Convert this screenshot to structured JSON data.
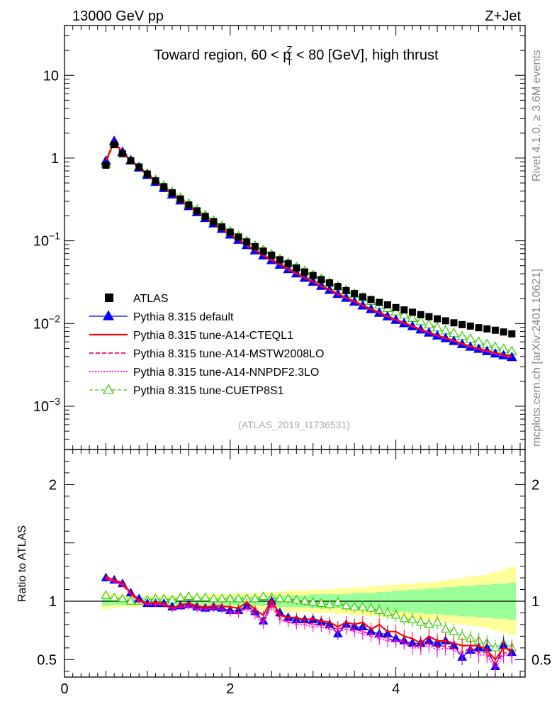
{
  "header": {
    "energy": "13000 GeV pp",
    "process": "Z+Jet"
  },
  "side_labels": {
    "rivet": "Rivet 4.1.0, ≥ 3.6M events",
    "mcplots": "mcplots.cern.ch [arXiv:2401.10621]"
  },
  "title": {
    "prefix": "Toward region, 60 < p",
    "sup": "Z",
    "sub": "T",
    "suffix": " < 80 [GeV], high thrust"
  },
  "analysis_tag": "(ATLAS_2019_I1736531)",
  "colors": {
    "ATLAS": "#000000",
    "default": "#0000ff",
    "CTEQL1": "#ff0000",
    "MSTW": "#ff0066",
    "NNPDF": "#ff00ff",
    "CUETP8S1": "#33cc00",
    "band_inner": "#99ff99",
    "band_outer": "#ffff99"
  },
  "chart_data": [
    {
      "type": "scatter",
      "panel": "main",
      "yscale": "log",
      "xlim": [
        0,
        5.56
      ],
      "ylim": [
        0.0003,
        40
      ],
      "y_ticks": [
        {
          "value": 10,
          "label": "10"
        },
        {
          "value": 1,
          "label": "1"
        },
        {
          "value": 0.1,
          "label": "10",
          "sup": "−1"
        },
        {
          "value": 0.01,
          "label": "10",
          "sup": "−2"
        },
        {
          "value": 0.001,
          "label": "10",
          "sup": "−3"
        }
      ],
      "x": [
        0.5,
        0.6,
        0.7,
        0.8,
        0.9,
        1.0,
        1.1,
        1.2,
        1.3,
        1.4,
        1.5,
        1.6,
        1.7,
        1.8,
        1.9,
        2.0,
        2.1,
        2.2,
        2.3,
        2.4,
        2.5,
        2.6,
        2.7,
        2.8,
        2.9,
        3.0,
        3.1,
        3.2,
        3.3,
        3.4,
        3.5,
        3.6,
        3.7,
        3.8,
        3.9,
        4.0,
        4.1,
        4.2,
        4.3,
        4.4,
        4.5,
        4.6,
        4.7,
        4.8,
        4.9,
        5.0,
        5.1,
        5.2,
        5.3,
        5.4
      ],
      "series": [
        {
          "name": "ATLAS",
          "key": "ATLAS",
          "style": "square",
          "values": [
            0.82,
            1.45,
            1.13,
            0.93,
            0.78,
            0.64,
            0.53,
            0.45,
            0.38,
            0.32,
            0.27,
            0.23,
            0.197,
            0.17,
            0.147,
            0.127,
            0.111,
            0.097,
            0.085,
            0.075,
            0.067,
            0.059,
            0.053,
            0.047,
            0.042,
            0.038,
            0.034,
            0.031,
            0.028,
            0.025,
            0.023,
            0.021,
            0.0195,
            0.018,
            0.0168,
            0.0156,
            0.0146,
            0.0137,
            0.0128,
            0.0121,
            0.0114,
            0.0108,
            0.0102,
            0.0097,
            0.0093,
            0.0089,
            0.0086,
            0.0083,
            0.0079,
            0.0075
          ]
        },
        {
          "name": "Pythia 8.315 default",
          "key": "default",
          "style": "line-triangle",
          "values": [
            0.92,
            1.6,
            1.18,
            0.93,
            0.76,
            0.62,
            0.51,
            0.43,
            0.36,
            0.305,
            0.26,
            0.22,
            0.187,
            0.161,
            0.138,
            0.118,
            0.102,
            0.088,
            0.076,
            0.066,
            0.058,
            0.051,
            0.045,
            0.04,
            0.0355,
            0.0317,
            0.0283,
            0.0253,
            0.0226,
            0.0203,
            0.0182,
            0.0164,
            0.0148,
            0.0134,
            0.0121,
            0.011,
            0.01,
            0.0092,
            0.0084,
            0.0077,
            0.0071,
            0.0066,
            0.0061,
            0.0056,
            0.0052,
            0.0049,
            0.0046,
            0.0043,
            0.0041,
            0.0039
          ]
        },
        {
          "name": "Pythia 8.315 tune-A14-CTEQL1",
          "key": "CTEQL1",
          "style": "solid",
          "values": [
            0.93,
            1.58,
            1.17,
            0.93,
            0.76,
            0.62,
            0.52,
            0.435,
            0.365,
            0.308,
            0.262,
            0.222,
            0.189,
            0.162,
            0.139,
            0.119,
            0.103,
            0.089,
            0.077,
            0.067,
            0.059,
            0.052,
            0.046,
            0.0405,
            0.036,
            0.0321,
            0.0286,
            0.0256,
            0.0229,
            0.0206,
            0.0185,
            0.0166,
            0.015,
            0.0136,
            0.0123,
            0.0112,
            0.0102,
            0.0093,
            0.0085,
            0.0078,
            0.0072,
            0.0067,
            0.0062,
            0.0057,
            0.0053,
            0.005,
            0.0047,
            0.0044,
            0.0042,
            0.004
          ]
        },
        {
          "name": "Pythia 8.315 tune-A14-MSTW2008LO",
          "key": "MSTW",
          "style": "dashed",
          "values": [
            0.94,
            1.59,
            1.17,
            0.93,
            0.76,
            0.62,
            0.515,
            0.43,
            0.362,
            0.306,
            0.26,
            0.22,
            0.188,
            0.161,
            0.138,
            0.118,
            0.102,
            0.088,
            0.076,
            0.066,
            0.058,
            0.051,
            0.045,
            0.04,
            0.0355,
            0.0317,
            0.0283,
            0.0253,
            0.0226,
            0.0203,
            0.0182,
            0.0164,
            0.0148,
            0.0134,
            0.0121,
            0.011,
            0.01,
            0.0092,
            0.0084,
            0.0077,
            0.0071,
            0.0066,
            0.0061,
            0.0056,
            0.0052,
            0.0049,
            0.0046,
            0.0043,
            0.0041,
            0.0039
          ]
        },
        {
          "name": "Pythia 8.315 tune-A14-NNPDF2.3LO",
          "key": "NNPDF",
          "style": "dotted",
          "values": [
            0.95,
            1.6,
            1.18,
            0.93,
            0.76,
            0.62,
            0.515,
            0.43,
            0.362,
            0.306,
            0.26,
            0.22,
            0.188,
            0.161,
            0.138,
            0.118,
            0.102,
            0.088,
            0.076,
            0.066,
            0.058,
            0.051,
            0.045,
            0.04,
            0.0355,
            0.0317,
            0.0283,
            0.0253,
            0.0226,
            0.0203,
            0.0182,
            0.0164,
            0.0148,
            0.0134,
            0.0121,
            0.011,
            0.01,
            0.0092,
            0.0084,
            0.0077,
            0.0071,
            0.0066,
            0.0061,
            0.0056,
            0.0052,
            0.0049,
            0.0046,
            0.0043,
            0.0041,
            0.0039
          ]
        },
        {
          "name": "Pythia 8.315 tune-CUETP8S1",
          "key": "CUETP8S1",
          "style": "dashed-open-triangle",
          "values": [
            0.85,
            1.5,
            1.14,
            0.93,
            0.78,
            0.65,
            0.54,
            0.46,
            0.39,
            0.33,
            0.28,
            0.238,
            0.203,
            0.174,
            0.15,
            0.13,
            0.113,
            0.099,
            0.087,
            0.077,
            0.068,
            0.06,
            0.054,
            0.048,
            0.043,
            0.0385,
            0.0345,
            0.031,
            0.0279,
            0.0251,
            0.0227,
            0.0205,
            0.0186,
            0.0168,
            0.0153,
            0.0139,
            0.0127,
            0.0116,
            0.0106,
            0.0097,
            0.0089,
            0.0082,
            0.0076,
            0.007,
            0.0065,
            0.006,
            0.0056,
            0.0052,
            0.0049,
            0.0046
          ]
        }
      ]
    },
    {
      "type": "line",
      "panel": "ratio",
      "ylabel": "Ratio to ATLAS",
      "xlim": [
        0,
        5.56
      ],
      "ylim": [
        0.35,
        2.3
      ],
      "x_ticks": [
        0,
        2,
        4
      ],
      "y_ticks": [
        0.5,
        1,
        2
      ],
      "x": [
        0.5,
        0.6,
        0.7,
        0.8,
        0.9,
        1.0,
        1.1,
        1.2,
        1.3,
        1.4,
        1.5,
        1.6,
        1.7,
        1.8,
        1.9,
        2.0,
        2.1,
        2.2,
        2.3,
        2.4,
        2.5,
        2.6,
        2.7,
        2.8,
        2.9,
        3.0,
        3.1,
        3.2,
        3.3,
        3.4,
        3.5,
        3.6,
        3.7,
        3.8,
        3.9,
        4.0,
        4.1,
        4.2,
        4.3,
        4.4,
        4.5,
        4.6,
        4.7,
        4.8,
        4.9,
        5.0,
        5.1,
        5.2,
        5.3,
        5.4
      ],
      "band_inner_halfwidth": [
        0.04,
        0.03,
        0.03,
        0.03,
        0.03,
        0.03,
        0.03,
        0.03,
        0.03,
        0.03,
        0.03,
        0.03,
        0.03,
        0.03,
        0.03,
        0.04,
        0.04,
        0.04,
        0.04,
        0.04,
        0.05,
        0.05,
        0.05,
        0.05,
        0.05,
        0.06,
        0.06,
        0.06,
        0.06,
        0.06,
        0.07,
        0.07,
        0.07,
        0.08,
        0.08,
        0.09,
        0.09,
        0.1,
        0.1,
        0.11,
        0.11,
        0.12,
        0.12,
        0.13,
        0.13,
        0.14,
        0.14,
        0.15,
        0.15,
        0.16
      ],
      "band_outer_halfwidth": [
        0.07,
        0.06,
        0.05,
        0.05,
        0.05,
        0.05,
        0.05,
        0.05,
        0.05,
        0.05,
        0.05,
        0.05,
        0.06,
        0.06,
        0.06,
        0.06,
        0.07,
        0.07,
        0.07,
        0.07,
        0.08,
        0.08,
        0.09,
        0.09,
        0.09,
        0.1,
        0.1,
        0.1,
        0.11,
        0.11,
        0.12,
        0.12,
        0.13,
        0.13,
        0.14,
        0.14,
        0.15,
        0.15,
        0.16,
        0.16,
        0.17,
        0.18,
        0.19,
        0.2,
        0.21,
        0.22,
        0.23,
        0.25,
        0.27,
        0.29
      ],
      "series": [
        {
          "name": "Pythia 8.315 default",
          "key": "default",
          "values": [
            1.2,
            1.18,
            1.15,
            1.07,
            1.02,
            0.98,
            0.98,
            0.98,
            0.95,
            0.96,
            0.97,
            0.95,
            0.94,
            0.95,
            0.94,
            0.92,
            0.92,
            0.96,
            0.91,
            0.83,
            1.0,
            0.9,
            0.86,
            0.84,
            0.84,
            0.84,
            0.82,
            0.8,
            0.72,
            0.8,
            0.78,
            0.78,
            0.74,
            0.72,
            0.72,
            0.68,
            0.66,
            0.64,
            0.64,
            0.66,
            0.64,
            0.66,
            0.62,
            0.52,
            0.58,
            0.6,
            0.6,
            0.44,
            0.62,
            0.56
          ]
        },
        {
          "name": "Pythia 8.315 tune-A14-CTEQL1",
          "key": "CTEQL1",
          "values": [
            1.21,
            1.18,
            1.16,
            1.07,
            1.01,
            0.98,
            0.99,
            0.98,
            0.94,
            0.97,
            0.98,
            0.96,
            0.95,
            0.96,
            0.96,
            0.95,
            0.94,
            0.99,
            0.93,
            0.88,
            1.01,
            0.88,
            0.86,
            0.86,
            0.84,
            0.85,
            0.83,
            0.82,
            0.78,
            0.82,
            0.8,
            0.82,
            0.76,
            0.8,
            0.74,
            0.74,
            0.7,
            0.68,
            0.64,
            0.7,
            0.66,
            0.66,
            0.64,
            0.62,
            0.62,
            0.62,
            0.58,
            0.5,
            0.6,
            0.58
          ]
        },
        {
          "name": "Pythia 8.315 tune-A14-MSTW2008LO",
          "key": "MSTW",
          "values": [
            1.19,
            1.17,
            1.14,
            1.06,
            1.0,
            0.97,
            0.98,
            0.97,
            0.93,
            0.95,
            0.96,
            0.94,
            0.93,
            0.94,
            0.93,
            0.91,
            0.9,
            0.95,
            0.89,
            0.82,
            0.98,
            0.86,
            0.82,
            0.82,
            0.82,
            0.8,
            0.8,
            0.78,
            0.76,
            0.78,
            0.76,
            0.74,
            0.72,
            0.7,
            0.68,
            0.66,
            0.66,
            0.62,
            0.62,
            0.64,
            0.6,
            0.62,
            0.6,
            0.56,
            0.6,
            0.56,
            0.56,
            0.46,
            0.56,
            0.55
          ]
        },
        {
          "name": "Pythia 8.315 tune-A14-NNPDF2.3LO",
          "key": "NNPDF",
          "values": [
            1.2,
            1.17,
            1.14,
            1.06,
            1.0,
            0.97,
            0.97,
            0.97,
            0.93,
            0.95,
            0.95,
            0.93,
            0.93,
            0.94,
            0.93,
            0.9,
            0.89,
            0.94,
            0.88,
            0.8,
            0.96,
            0.84,
            0.82,
            0.8,
            0.8,
            0.78,
            0.78,
            0.76,
            0.74,
            0.76,
            0.74,
            0.72,
            0.7,
            0.68,
            0.66,
            0.66,
            0.64,
            0.6,
            0.6,
            0.62,
            0.58,
            0.6,
            0.58,
            0.54,
            0.58,
            0.54,
            0.54,
            0.42,
            0.54,
            0.53
          ]
        },
        {
          "name": "Pythia 8.315 tune-CUETP8S1",
          "key": "CUETP8S1",
          "values": [
            1.05,
            1.03,
            1.02,
            1.0,
            1.0,
            1.01,
            1.02,
            1.02,
            1.01,
            1.03,
            1.04,
            1.03,
            1.03,
            1.02,
            1.02,
            1.02,
            1.02,
            1.02,
            1.02,
            1.04,
            1.03,
            1.02,
            1.02,
            1.01,
            1.0,
            0.99,
            0.98,
            0.97,
            0.99,
            0.96,
            0.95,
            0.95,
            0.94,
            0.92,
            0.9,
            0.88,
            0.85,
            0.84,
            0.82,
            0.8,
            0.82,
            0.76,
            0.74,
            0.7,
            0.68,
            0.66,
            0.64,
            0.6,
            0.64,
            0.6
          ]
        }
      ]
    }
  ]
}
